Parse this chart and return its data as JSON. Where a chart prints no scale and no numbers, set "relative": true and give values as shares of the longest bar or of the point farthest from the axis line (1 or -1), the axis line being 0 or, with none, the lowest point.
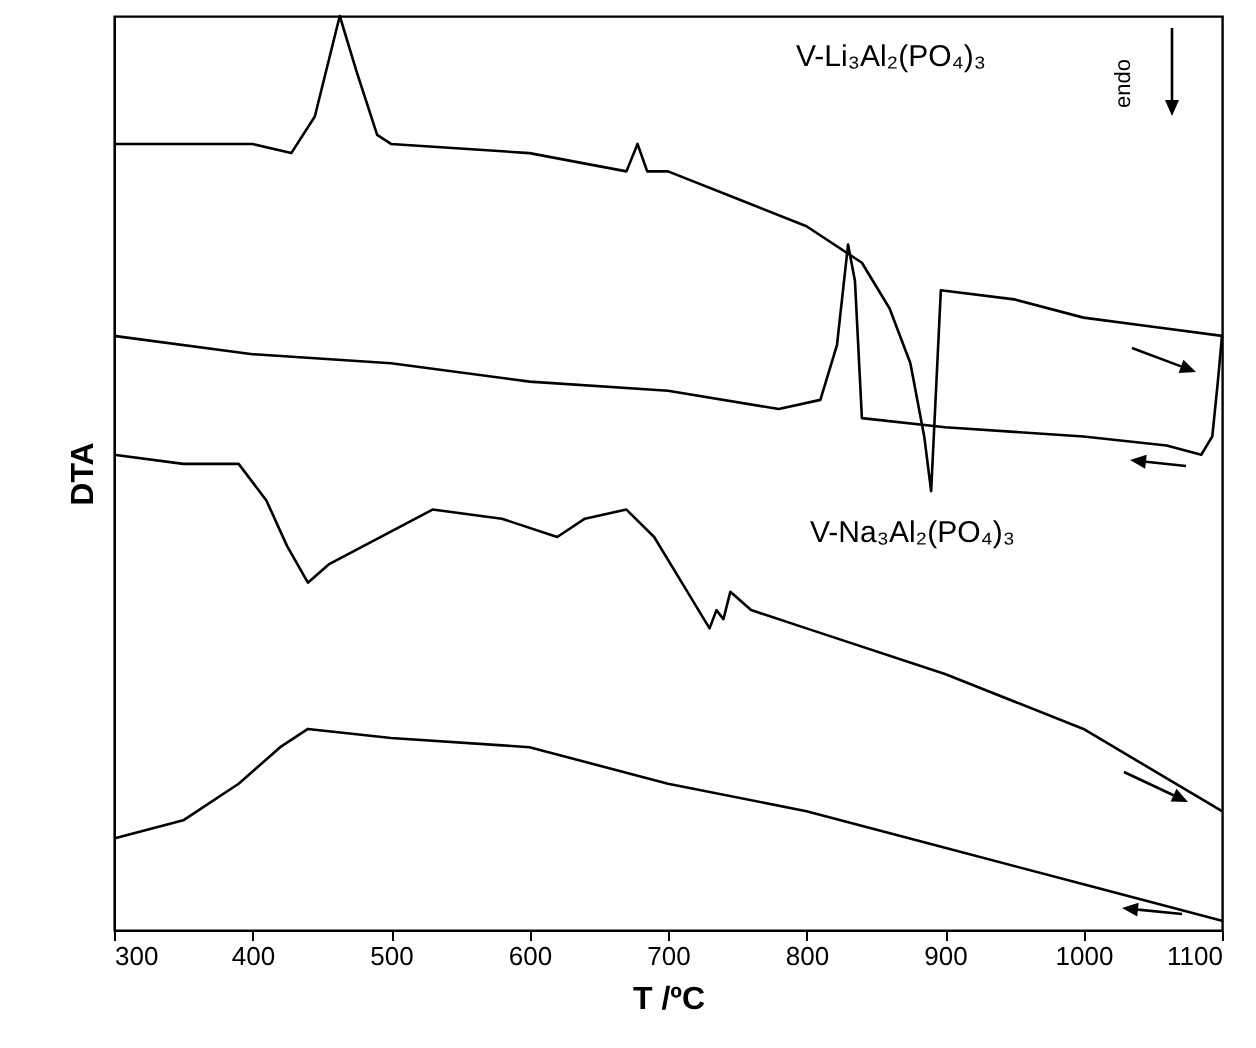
{
  "chart_data": {
    "type": "line",
    "relative": true,
    "xlabel": "T /ºC",
    "ylabel": "DTA",
    "xlim": [
      300,
      1100
    ],
    "xticks": [
      300,
      400,
      500,
      600,
      700,
      800,
      900,
      1000,
      1100
    ],
    "grid": false,
    "marker": "none",
    "line_style": "solid",
    "annotations": [
      "V-Li₃Al₂(PO₄)₃",
      "endo",
      "V-Na₃Al₂(PO₄)₃"
    ],
    "series": [
      {
        "color": "#000000",
        "x": [
          300,
          400,
          428,
          445,
          463,
          475,
          490,
          500,
          600,
          670,
          678,
          685,
          700,
          750,
          800,
          840,
          860,
          875,
          885,
          890,
          897,
          950,
          1000,
          1050,
          1100
        ],
        "values": [
          0.86,
          0.86,
          0.85,
          0.89,
          1,
          0.94,
          0.87,
          0.86,
          0.85,
          0.83,
          0.86,
          0.83,
          0.83,
          0.8,
          0.77,
          0.73,
          0.68,
          0.62,
          0.54,
          0.48,
          0.7,
          0.69,
          0.67,
          0.66,
          0.65
        ]
      },
      {
        "color": "#000000",
        "x": [
          300,
          400,
          500,
          600,
          700,
          780,
          810,
          822,
          830,
          835,
          840,
          900,
          1000,
          1060,
          1085,
          1093,
          1097,
          1100
        ],
        "values": [
          0.65,
          0.63,
          0.62,
          0.6,
          0.59,
          0.57,
          0.58,
          0.64,
          0.75,
          0.71,
          0.56,
          0.55,
          0.54,
          0.53,
          0.52,
          0.54,
          0.6,
          0.65
        ]
      },
      {
        "color": "#000000",
        "x": [
          300,
          350,
          390,
          410,
          425,
          440,
          455,
          480,
          530,
          580,
          620,
          640,
          670,
          690,
          710,
          730,
          735,
          740,
          745,
          760,
          800,
          900,
          1000,
          1100
        ],
        "values": [
          0.52,
          0.51,
          0.51,
          0.47,
          0.42,
          0.38,
          0.4,
          0.42,
          0.46,
          0.45,
          0.43,
          0.45,
          0.46,
          0.43,
          0.38,
          0.33,
          0.35,
          0.34,
          0.37,
          0.35,
          0.33,
          0.28,
          0.22,
          0.13
        ]
      },
      {
        "color": "#000000",
        "x": [
          300,
          350,
          390,
          420,
          440,
          500,
          600,
          700,
          800,
          900,
          1000,
          1100
        ],
        "values": [
          0.1,
          0.12,
          0.16,
          0.2,
          0.22,
          0.21,
          0.2,
          0.16,
          0.13,
          0.09,
          0.05,
          0.01
        ]
      }
    ]
  }
}
